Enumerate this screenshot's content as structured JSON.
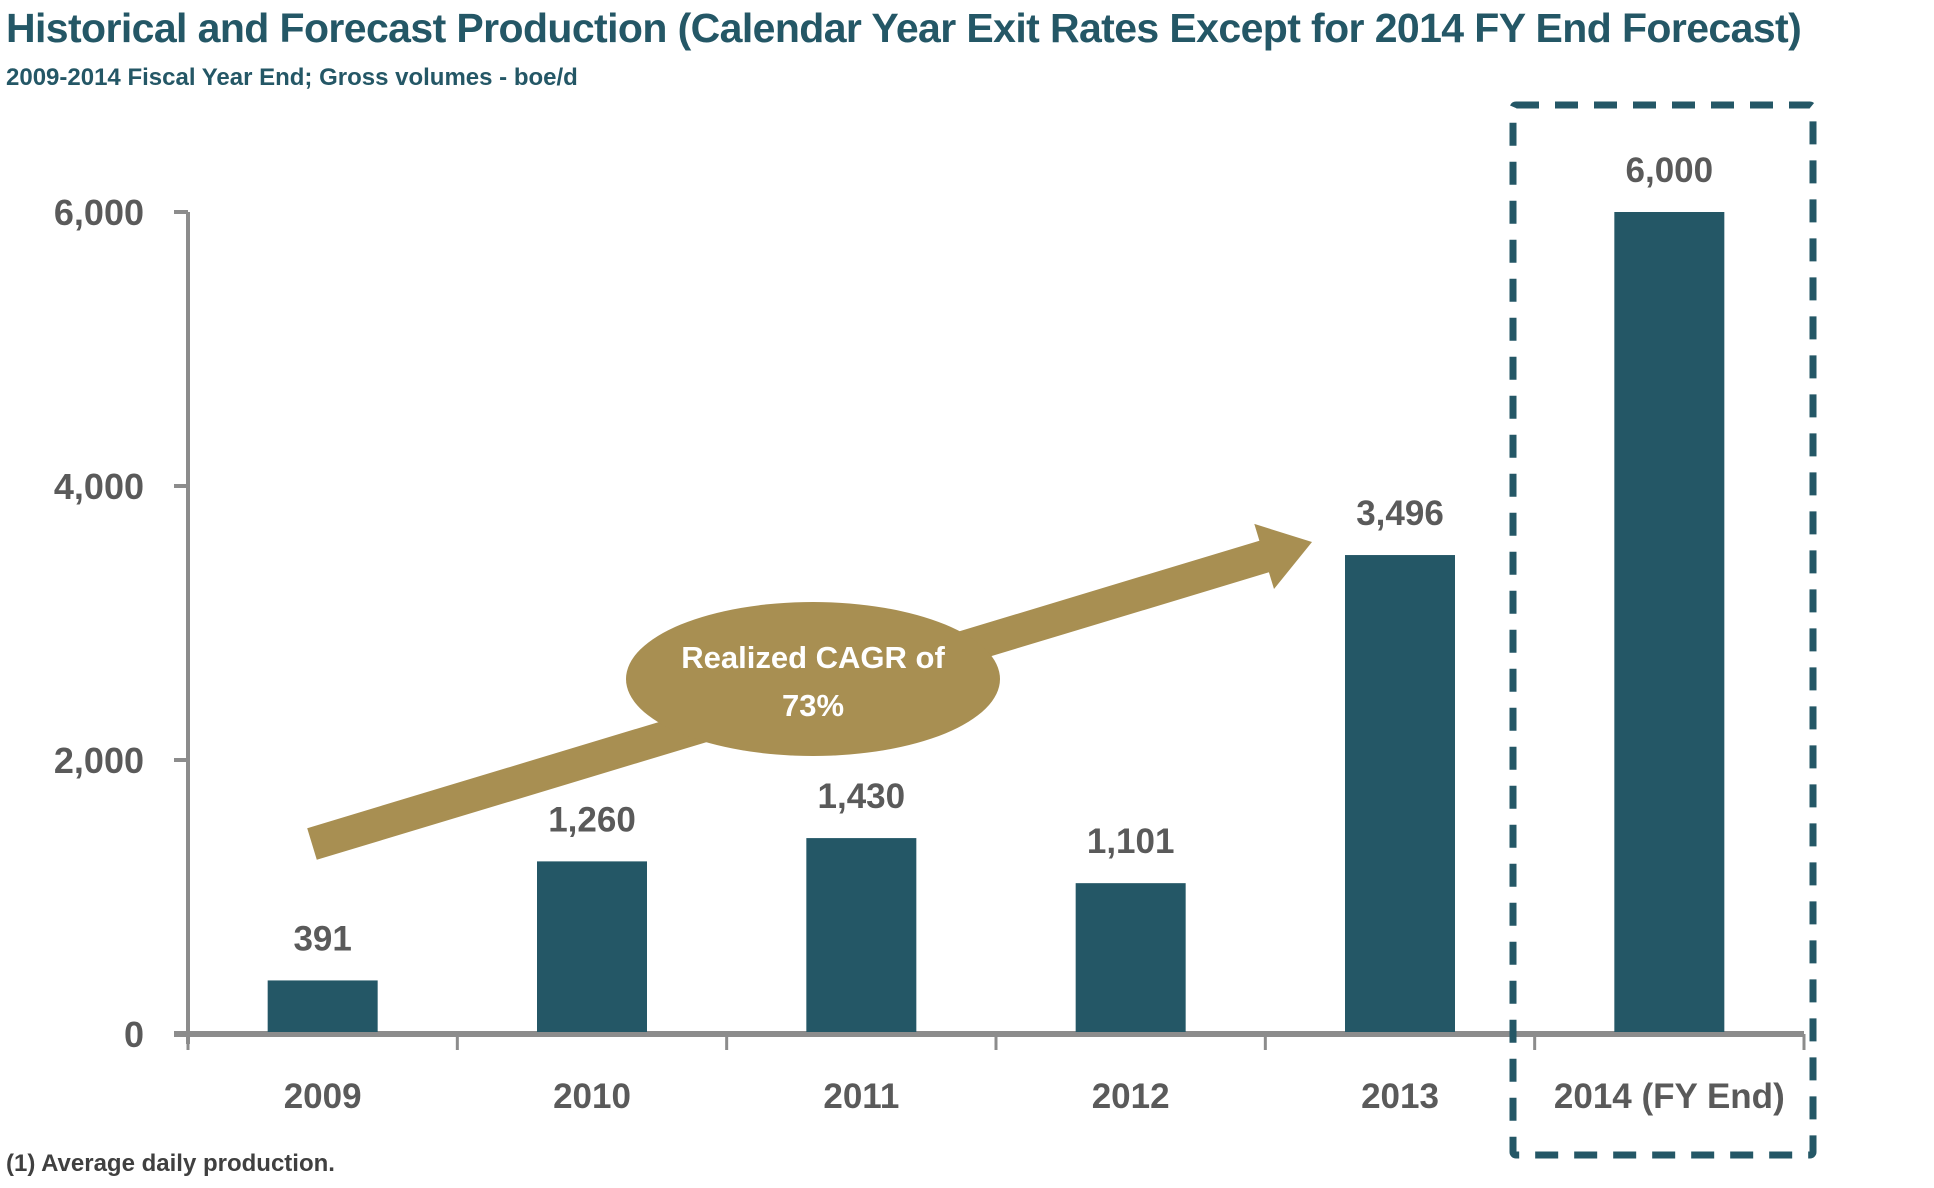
{
  "header": {
    "title": "Historical and Forecast Production (Calendar Year Exit Rates Except for 2014 FY End Forecast)",
    "subtitle": "2009-2014 Fiscal Year End; Gross volumes - boe/d"
  },
  "footnote": "(1)  Average daily production.",
  "colors": {
    "bar": "#245766",
    "axis": "#8c8c8c",
    "arrow": "#a88f52",
    "highlight_box": "#245766",
    "label_text": "#5a5a5a"
  },
  "chart_data": {
    "type": "bar",
    "title": "Historical and Forecast Production (Calendar Year Exit Rates Except for 2014 FY End Forecast)",
    "subtitle": "2009-2014 Fiscal Year End; Gross volumes - boe/d",
    "xlabel": "",
    "ylabel": "",
    "categories": [
      "2009",
      "2010",
      "2011",
      "2012",
      "2013",
      "2014 (FY End)"
    ],
    "values": [
      391,
      1260,
      1430,
      1101,
      3496,
      6000
    ],
    "data_labels": [
      "391",
      "1,260",
      "1,430",
      "1,101",
      "3,496",
      "6,000"
    ],
    "ylim": [
      0,
      6000
    ],
    "yticks": [
      0,
      2000,
      4000,
      6000
    ],
    "ytick_labels": [
      "0",
      "2,000",
      "4,000",
      "6,000"
    ],
    "grid": false,
    "legend": "none",
    "highlighted_category": "2014 (FY End)",
    "annotations": [
      {
        "type": "arrow-callout",
        "text_lines": [
          "Realized CAGR of",
          "73%"
        ],
        "from_category": "2009",
        "to_category": "2013"
      }
    ],
    "footnote": "(1)  Average daily production."
  }
}
